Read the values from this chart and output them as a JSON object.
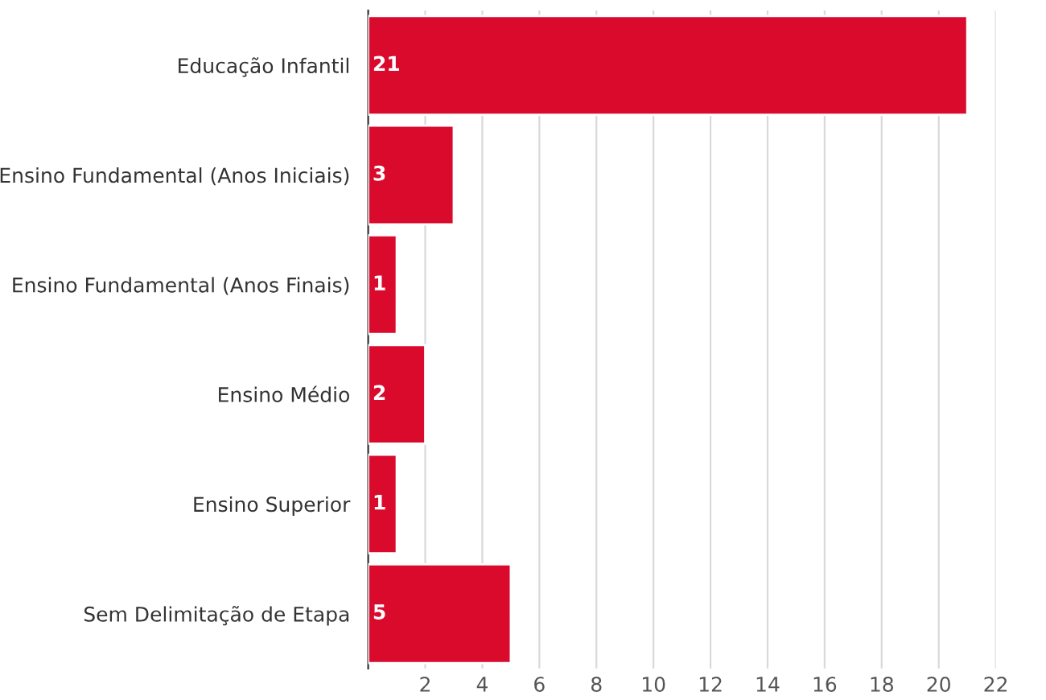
{
  "chart_data": {
    "type": "bar",
    "orientation": "horizontal",
    "categories": [
      "Educação Infantil",
      "Ensino Fundamental (Anos Iniciais)",
      "Ensino Fundamental (Anos Finais)",
      "Ensino Médio",
      "Ensino Superior",
      "Sem Delimitação de Etapa"
    ],
    "values": [
      21,
      3,
      1,
      2,
      1,
      5
    ],
    "color": "#d90a2c",
    "xlim": [
      0,
      22
    ],
    "xticks": [
      2,
      4,
      6,
      8,
      10,
      12,
      14,
      16,
      18,
      20,
      22
    ],
    "grid": "x",
    "data_labels": true
  }
}
